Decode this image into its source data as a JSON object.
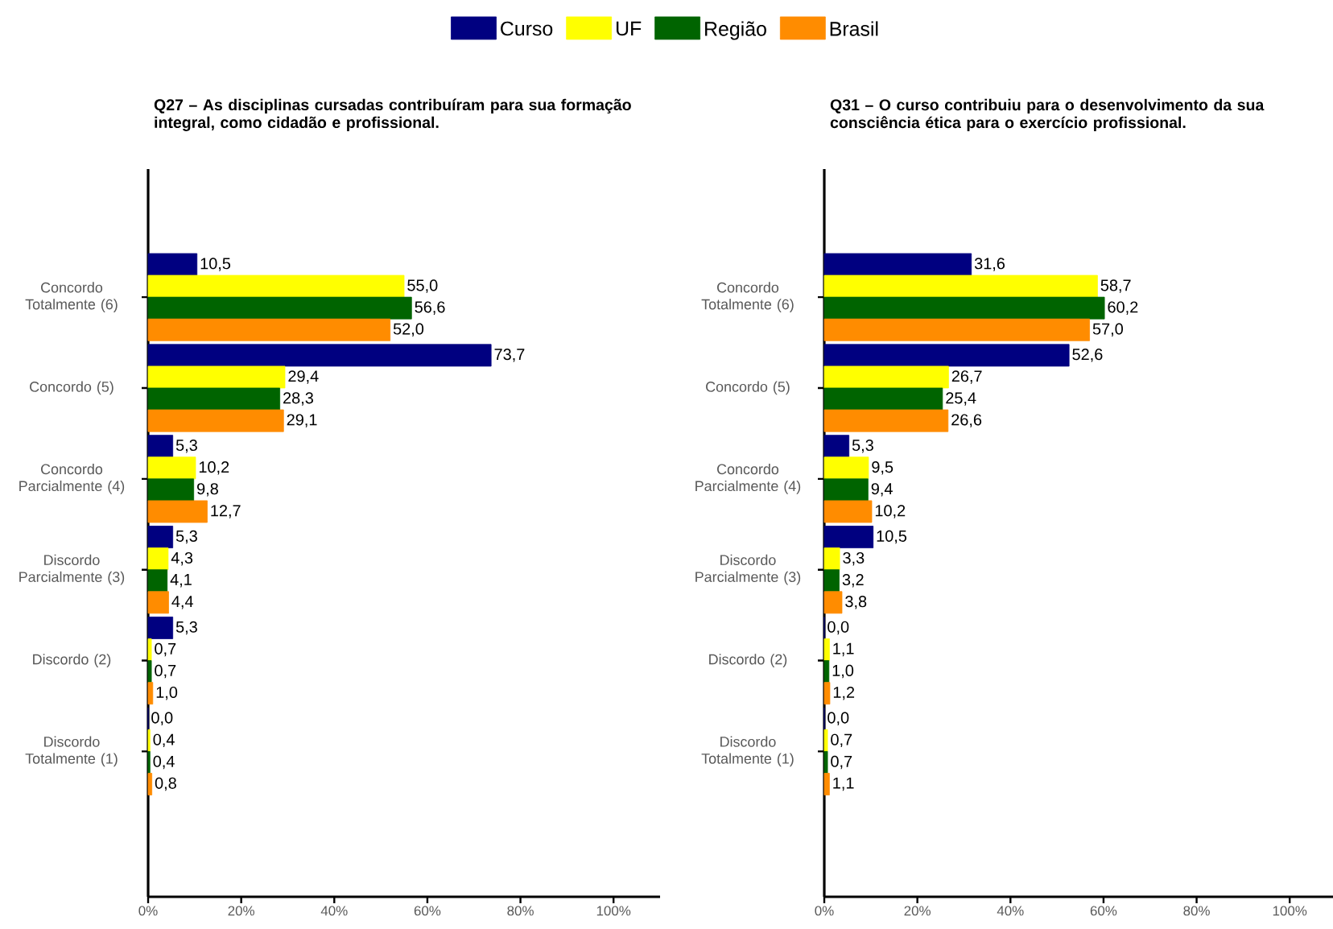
{
  "chart_data": [
    {
      "type": "bar",
      "orientation": "horizontal",
      "title": "Q27 – As disciplinas cursadas contribuíram para sua formação integral, como cidadão e profissional.",
      "categories": [
        "Concordo Totalmente (6)",
        "Concordo (5)",
        "Concordo Parcialmente (4)",
        "Discordo Parcialmente (3)",
        "Discordo (2)",
        "Discordo Totalmente (1)"
      ],
      "series": [
        {
          "name": "Curso",
          "color": "#000080",
          "values": [
            10.5,
            73.7,
            5.3,
            5.3,
            5.3,
            0.0
          ],
          "value_labels": [
            "10,5",
            "73,7",
            "5,3",
            "5,3",
            "5,3",
            "0,0"
          ]
        },
        {
          "name": "UF",
          "color": "#ffff00",
          "values": [
            55.0,
            29.4,
            10.2,
            4.3,
            0.7,
            0.4
          ],
          "value_labels": [
            "55,0",
            "29,4",
            "10,2",
            "4,3",
            "0,7",
            "0,4"
          ]
        },
        {
          "name": "Região",
          "color": "#006400",
          "values": [
            56.6,
            28.3,
            9.8,
            4.1,
            0.7,
            0.4
          ],
          "value_labels": [
            "56,6",
            "28,3",
            "9,8",
            "4,1",
            "0,7",
            "0,4"
          ]
        },
        {
          "name": "Brasil",
          "color": "#ff8c00",
          "values": [
            52.0,
            29.1,
            12.7,
            4.4,
            1.0,
            0.8
          ],
          "value_labels": [
            "52,0",
            "29,1",
            "12,7",
            "4,4",
            "1,0",
            "0,8"
          ]
        }
      ],
      "xlim": [
        0,
        110
      ],
      "xticks": [
        {
          "value": 0,
          "label": "0%"
        },
        {
          "value": 20,
          "label": "20%"
        },
        {
          "value": 40,
          "label": "40%"
        },
        {
          "value": 60,
          "label": "60%"
        },
        {
          "value": 80,
          "label": "80%"
        },
        {
          "value": 100,
          "label": "100%"
        }
      ],
      "legend": "top"
    },
    {
      "type": "bar",
      "orientation": "horizontal",
      "title": "Q31 – O curso contribuiu para o desenvolvimento da sua consciência ética para o exercício profissional.",
      "categories": [
        "Concordo Totalmente (6)",
        "Concordo (5)",
        "Concordo Parcialmente (4)",
        "Discordo Parcialmente (3)",
        "Discordo (2)",
        "Discordo Totalmente (1)"
      ],
      "series": [
        {
          "color": "#000080",
          "values": [
            31.6,
            52.6,
            5.3,
            10.5,
            0.0,
            0.0
          ],
          "value_labels": [
            "31,6",
            "52,6",
            "5,3",
            "10,5",
            "0,0",
            "0,0"
          ]
        },
        {
          "color": "#ffff00",
          "values": [
            58.7,
            26.7,
            9.5,
            3.3,
            1.1,
            0.7
          ],
          "value_labels": [
            "58,7",
            "26,7",
            "9,5",
            "3,3",
            "1,1",
            "0,7"
          ]
        },
        {
          "color": "#006400",
          "values": [
            60.2,
            25.4,
            9.4,
            3.2,
            1.0,
            0.7
          ],
          "value_labels": [
            "60,2",
            "25,4",
            "9,4",
            "3,2",
            "1,0",
            "0,7"
          ]
        },
        {
          "color": "#ff8c00",
          "values": [
            57.0,
            26.6,
            10.2,
            3.8,
            1.2,
            1.1
          ],
          "value_labels": [
            "57,0",
            "26,6",
            "10,2",
            "3,8",
            "1,2",
            "1,1"
          ]
        }
      ],
      "xlim": [
        0,
        110
      ],
      "xticks": [
        {
          "value": 0,
          "label": "0%"
        },
        {
          "value": 20,
          "label": "20%"
        },
        {
          "value": 40,
          "label": "40%"
        },
        {
          "value": 60,
          "label": "60%"
        },
        {
          "value": 80,
          "label": "80%"
        },
        {
          "value": 100,
          "label": "100%"
        }
      ]
    }
  ]
}
